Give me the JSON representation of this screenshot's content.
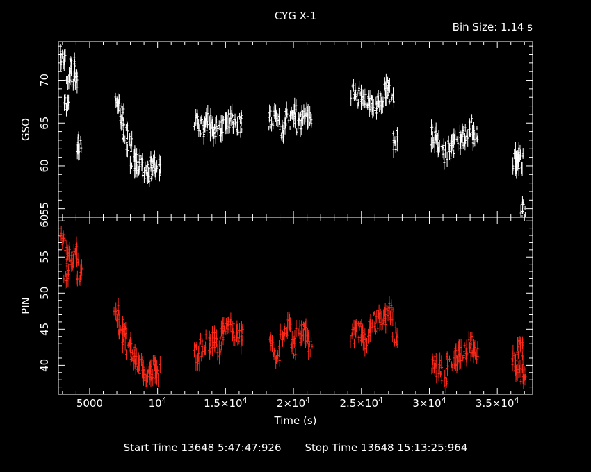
{
  "title": "CYG X-1",
  "bin_size": "Bin Size: 1.14 s",
  "footer": {
    "start": "Start Time 13648  5:47:47:926",
    "stop": "Stop Time 13648 15:13:25:964"
  },
  "chart_data": {
    "type": "scatter",
    "xlabel": "Time (s)",
    "xlim": [
      2700,
      37600
    ],
    "x_ticks": [
      {
        "value": 5000,
        "label": "5000"
      },
      {
        "value": 10000,
        "label": "10",
        "exp": "4"
      },
      {
        "value": 15000,
        "label": "1.5×10",
        "exp": "4"
      },
      {
        "value": 20000,
        "label": "2×10",
        "exp": "4"
      },
      {
        "value": 25000,
        "label": "2.5×10",
        "exp": "4"
      },
      {
        "value": 30000,
        "label": "3×10",
        "exp": "4"
      },
      {
        "value": 35000,
        "label": "3.5×10",
        "exp": "4"
      }
    ],
    "panels": [
      {
        "ylabel": "GSO",
        "color": "#ffffff",
        "ylim": [
          54,
          74.5
        ],
        "y_ticks": [
          55,
          60,
          65,
          70
        ],
        "segments": [
          {
            "x": [
              3000,
              3250,
              3500,
              3750,
              4000,
              4250
            ],
            "y": [
              72.5,
              67.5,
              70.5,
              71.5,
              70.0,
              62.5
            ]
          },
          {
            "x": [
              7000,
              7300,
              7600,
              7900,
              8200,
              8500,
              8800,
              9100,
              9400,
              9700,
              10000
            ],
            "y": [
              67.5,
              66.0,
              64.0,
              62.5,
              61.0,
              60.5,
              60.0,
              59.5,
              59.0,
              60.0,
              60.0
            ]
          },
          {
            "x": [
              12900,
              13300,
              13700,
              14100,
              14500,
              14900,
              15300,
              15700,
              16100
            ],
            "y": [
              65.0,
              64.5,
              65.0,
              64.0,
              64.5,
              65.0,
              65.5,
              65.0,
              65.0
            ]
          },
          {
            "x": [
              18400,
              18800,
              19200,
              19600,
              20000,
              20400,
              20800,
              21200
            ],
            "y": [
              65.5,
              66.0,
              64.0,
              65.5,
              66.0,
              65.0,
              66.0,
              65.5
            ]
          },
          {
            "x": [
              24400,
              24800,
              25200,
              25600,
              26000,
              26400,
              26800,
              27200,
              27500
            ],
            "y": [
              68.5,
              68.0,
              67.5,
              67.0,
              67.0,
              68.0,
              69.0,
              68.5,
              63.0
            ]
          },
          {
            "x": [
              30300,
              30700,
              31100,
              31500,
              31900,
              32300,
              32700,
              33100,
              33400
            ],
            "y": [
              63.5,
              62.5,
              61.5,
              62.0,
              62.5,
              63.0,
              63.5,
              64.5,
              63.5
            ]
          },
          {
            "x": [
              36300,
              36500,
              36700,
              36900
            ],
            "y": [
              60.5,
              61.0,
              60.5,
              55.0
            ]
          }
        ]
      },
      {
        "ylabel": "PIN",
        "color": "#ff2a1a",
        "ylim": [
          36,
          60.5
        ],
        "y_ticks": [
          40,
          45,
          50,
          55,
          60
        ],
        "segments": [
          {
            "x": [
              3000,
              3250,
              3500,
              3750,
              4000,
              4250
            ],
            "y": [
              57.0,
              53.0,
              55.0,
              54.5,
              55.5,
              52.5
            ]
          },
          {
            "x": [
              7000,
              7300,
              7600,
              7900,
              8200,
              8500,
              8800,
              9100,
              9400,
              9700,
              10000
            ],
            "y": [
              47.5,
              45.0,
              44.0,
              42.5,
              41.5,
              40.5,
              39.5,
              39.0,
              38.5,
              39.5,
              39.0
            ]
          },
          {
            "x": [
              12900,
              13300,
              13700,
              14100,
              14500,
              14900,
              15300,
              15700,
              16100
            ],
            "y": [
              41.5,
              42.5,
              43.0,
              43.5,
              42.5,
              44.5,
              45.5,
              44.5,
              44.0
            ]
          },
          {
            "x": [
              18400,
              18800,
              19200,
              19600,
              20000,
              20400,
              20800,
              21200
            ],
            "y": [
              42.5,
              41.5,
              44.0,
              45.0,
              42.5,
              44.5,
              44.5,
              43.0
            ]
          },
          {
            "x": [
              24400,
              24800,
              25200,
              25600,
              26000,
              26400,
              26800,
              27200,
              27500
            ],
            "y": [
              44.0,
              44.5,
              43.5,
              45.0,
              46.0,
              47.0,
              46.5,
              47.5,
              44.0
            ]
          },
          {
            "x": [
              30300,
              30700,
              31100,
              31500,
              31900,
              32300,
              32700,
              33100,
              33400
            ],
            "y": [
              40.0,
              39.5,
              38.5,
              40.5,
              41.0,
              41.5,
              42.0,
              43.0,
              41.5
            ]
          },
          {
            "x": [
              36300,
              36500,
              36700,
              36900
            ],
            "y": [
              40.5,
              39.5,
              42.5,
              39.0
            ]
          }
        ]
      }
    ]
  }
}
